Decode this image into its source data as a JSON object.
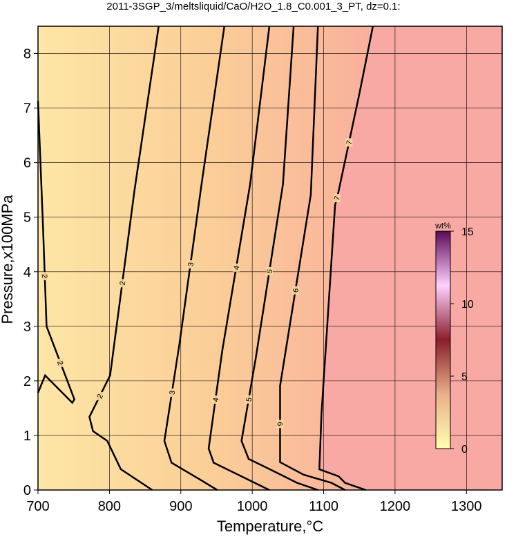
{
  "chart_data": {
    "type": "contour",
    "title": "2011-3SGP_3/meltsliquid/CaO/H2O_1.8_C0.001_3_PT, dz=0.1:",
    "x_label": "Temperature,°C",
    "y_label": "Pressure,x100MPa",
    "xlim": [
      700,
      1350
    ],
    "ylim": [
      0,
      8.5
    ],
    "xticks": [
      700,
      800,
      900,
      1000,
      1100,
      1200,
      1300
    ],
    "yticks": [
      0,
      1,
      2,
      3,
      4,
      5,
      6,
      7,
      8
    ],
    "grid": true,
    "series": [
      {
        "name": "2",
        "color": "#000000",
        "x": [
          700,
          707,
          712,
          751,
          748,
          710,
          700
        ],
        "y": [
          7.13,
          4.84,
          3.0,
          1.66,
          1.6,
          2.1,
          1.78
        ]
      },
      {
        "name": "2",
        "color": "#000000",
        "x": [
          869,
          835,
          801,
          772,
          777,
          797,
          816,
          860
        ],
        "y": [
          8.5,
          5.48,
          2.1,
          1.34,
          1.08,
          0.9,
          0.38,
          0
        ]
      },
      {
        "name": "3",
        "color": "#000000",
        "x": [
          961,
          929,
          898,
          877,
          887,
          927,
          951
        ],
        "y": [
          8.5,
          5.6,
          2.67,
          0.9,
          0.5,
          0.19,
          0
        ]
      },
      {
        "name": "4",
        "color": "#000000",
        "x": [
          1024,
          997,
          958,
          939,
          946,
          985,
          1024
        ],
        "y": [
          8.5,
          5.6,
          2.55,
          0.76,
          0.5,
          0.25,
          0
        ]
      },
      {
        "name": "5",
        "color": "#000000",
        "x": [
          1058,
          1043,
          1005,
          985,
          995,
          1034,
          1063,
          1092
        ],
        "y": [
          8.5,
          5.6,
          2.42,
          0.9,
          0.57,
          0.32,
          0.13,
          0
        ]
      },
      {
        "name": "6",
        "color": "#000000",
        "x": [
          1092,
          1082,
          1039,
          1039,
          1072,
          1111,
          1130
        ],
        "y": [
          8.5,
          5.41,
          1.91,
          0.51,
          0.28,
          0.13,
          0
        ]
      },
      {
        "name": "7",
        "color": "#000000",
        "x": [
          1169,
          1150,
          1121,
          1116,
          1097,
          1094,
          1121,
          1130,
          1159
        ],
        "y": [
          8.5,
          7.26,
          5.48,
          5.22,
          1.4,
          0.38,
          0.25,
          0.13,
          0
        ]
      }
    ],
    "colorbar": {
      "label": "wt%",
      "lim": [
        0,
        15
      ],
      "ticks": [
        0,
        5,
        10,
        15
      ],
      "colors": [
        "#ffffb0",
        "#e8b08a",
        "#8a1e2a",
        "#ffd0ff",
        "#5a0a5a"
      ]
    }
  }
}
